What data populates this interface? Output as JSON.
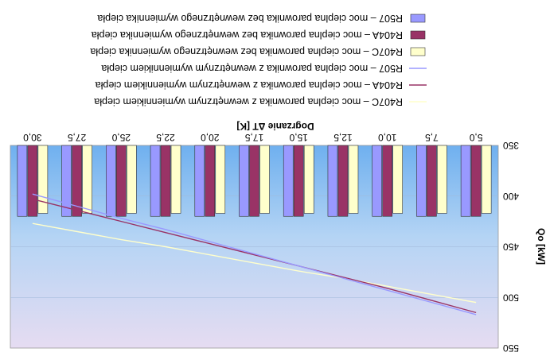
{
  "chart_data": {
    "type": "bar",
    "orientation": "rotated 180 degrees",
    "xlabel": "Dogrzanie ΔT [K]",
    "ylabel": "Qo [kW]",
    "categories": [
      "5,0",
      "7,5",
      "10,0",
      "12,5",
      "15,0",
      "17,5",
      "20,0",
      "22,5",
      "25,0",
      "27,5",
      "30,0"
    ],
    "yticks": [
      "350",
      "400",
      "450",
      "500",
      "550"
    ],
    "ylim": [
      350,
      550
    ],
    "y_axis_inverted": true,
    "bar_series": [
      {
        "name": "R407C – moc cieplna parownika bez wewnętrznego wymiennika ciepła",
        "color": "#ffffcc",
        "values": [
          417,
          417,
          417,
          417,
          417,
          417,
          417,
          417,
          417,
          417,
          417
        ]
      },
      {
        "name": "R404A – moc cieplna parownika bez wewnętrznego wymiennika ciepła",
        "color": "#993366",
        "values": [
          420,
          420,
          420,
          420,
          420,
          420,
          420,
          420,
          420,
          420,
          420
        ]
      },
      {
        "name": "R507 – moc cieplna parownika bez wewnętrznego wymiennika ciepła",
        "color": "#9999ff",
        "values": [
          420,
          420,
          420,
          420,
          420,
          420,
          420,
          420,
          420,
          420,
          420
        ]
      }
    ],
    "line_series": [
      {
        "name": "R407C – moc cieplna parownika z wewnętrznym wymiennikiem ciepła",
        "color": "#ffffcc",
        "values": [
          505,
          497,
          489,
          481,
          474,
          466,
          458,
          450,
          443,
          435,
          427
        ]
      },
      {
        "name": "R404A – moc cieplna parownika z wewnętrznym wymiennikiem ciepła",
        "color": "#993366",
        "values": [
          515,
          503,
          491,
          480,
          469,
          458,
          447,
          436,
          425,
          414,
          403
        ]
      },
      {
        "name": "R507 – moc cieplna parownika z wewnętrznym wymiennikiem ciepła",
        "color": "#9999ff",
        "values": [
          517,
          505,
          493,
          481,
          469,
          457,
          445,
          433,
          422,
          410,
          398
        ]
      }
    ],
    "legend_position": "top",
    "plot_background": [
      "#aaccf0",
      "#f0e0f0"
    ]
  }
}
